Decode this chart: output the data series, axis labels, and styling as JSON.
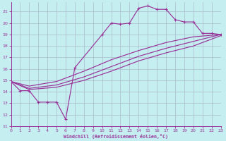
{
  "xlabel": "Windchill (Refroidissement éolien,°C)",
  "bg_color": "#c5eef0",
  "grid_color": "#aabbcc",
  "line_color": "#993399",
  "xlim": [
    0,
    23
  ],
  "ylim": [
    11,
    21.8
  ],
  "yticks": [
    11,
    12,
    13,
    14,
    15,
    16,
    17,
    18,
    19,
    20,
    21
  ],
  "xticks": [
    0,
    1,
    2,
    3,
    4,
    5,
    6,
    7,
    8,
    9,
    10,
    11,
    12,
    13,
    14,
    15,
    16,
    17,
    18,
    19,
    20,
    21,
    22,
    23
  ],
  "curve_jagged_x": [
    0,
    1,
    2,
    3,
    4,
    5,
    6,
    7,
    10,
    11,
    12,
    13,
    14,
    15,
    16,
    17,
    18,
    19,
    20,
    21,
    22,
    23
  ],
  "curve_jagged_y": [
    14.9,
    14.1,
    14.1,
    13.1,
    13.1,
    13.1,
    11.6,
    16.1,
    19.0,
    20.0,
    19.9,
    20.0,
    21.3,
    21.5,
    21.2,
    21.2,
    20.3,
    20.1,
    20.1,
    19.1,
    19.1,
    19.0
  ],
  "curve_smooth1_x": [
    0,
    2,
    5,
    8,
    11,
    14,
    17,
    20,
    23
  ],
  "curve_smooth1_y": [
    14.9,
    14.5,
    14.9,
    15.8,
    16.8,
    17.6,
    18.3,
    18.8,
    19.0
  ],
  "curve_smooth2_x": [
    0,
    2,
    5,
    8,
    11,
    14,
    17,
    20,
    23
  ],
  "curve_smooth2_y": [
    14.9,
    14.3,
    14.6,
    15.3,
    16.2,
    17.1,
    17.8,
    18.4,
    19.0
  ],
  "curve_smooth3_x": [
    0,
    2,
    5,
    8,
    11,
    14,
    17,
    20,
    23
  ],
  "curve_smooth3_y": [
    14.9,
    14.2,
    14.4,
    15.0,
    15.8,
    16.7,
    17.4,
    18.0,
    18.9
  ]
}
